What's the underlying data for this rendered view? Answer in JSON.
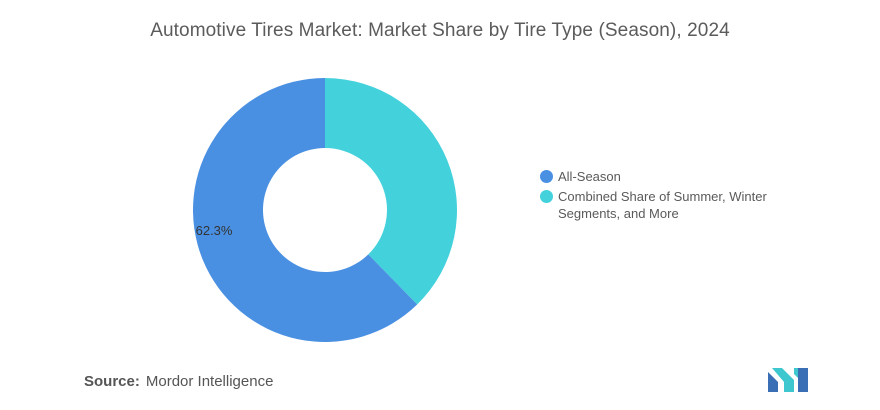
{
  "chart_data": {
    "type": "pie",
    "title": "Automotive Tires Market: Market Share by Tire Type (Season), 2024",
    "donut": true,
    "slices": [
      {
        "name": "All-Season",
        "value": 62.3,
        "label": "62.3%",
        "color": "#4a90e2"
      },
      {
        "name": "Combined Share of Summer, Winter Segments, and More",
        "value": 37.7,
        "label": "",
        "color": "#43d1dc"
      }
    ],
    "legend_position": "right"
  },
  "source": {
    "label": "Source:",
    "text": "Mordor Intelligence"
  },
  "logo": {
    "icon": "mordor-intelligence-logo-icon",
    "colors": [
      "#3a6fb5",
      "#3fc7cf"
    ]
  }
}
